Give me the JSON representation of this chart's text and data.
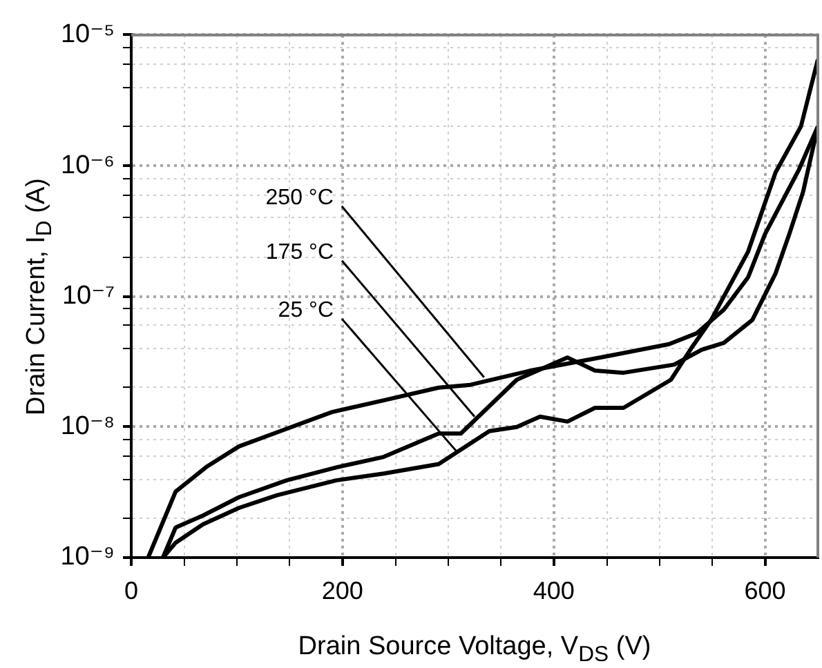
{
  "chart_data": {
    "type": "line",
    "xlabel": "Drain Source Voltage, V$_{DS}$ (V)",
    "ylabel": "Drain Current, I$_{D}$ (A)",
    "log": "y",
    "grid": true,
    "legend": false,
    "marker": "none",
    "line_style": "solid",
    "xlim": [
      0,
      650
    ],
    "xticks": [
      0,
      {
        "value": 50,
        "label": null
      },
      {
        "value": 100,
        "label": null
      },
      {
        "value": 150,
        "label": null
      },
      200,
      {
        "value": 250,
        "label": null
      },
      {
        "value": 300,
        "label": null
      },
      {
        "value": 350,
        "label": null
      },
      400,
      {
        "value": 450,
        "label": null
      },
      {
        "value": 500,
        "label": null
      },
      {
        "value": 550,
        "label": null
      },
      600
    ],
    "ylim": [
      1e-09,
      1e-05
    ],
    "yticks": [
      {
        "value": 1e-09,
        "label": "10⁻⁹"
      },
      {
        "value": 2e-09,
        "label": null
      },
      {
        "value": 4e-09,
        "label": null
      },
      {
        "value": 6e-09,
        "label": null
      },
      {
        "value": 8e-09,
        "label": null
      },
      {
        "value": 1e-08,
        "label": "10⁻⁸"
      },
      {
        "value": 2e-08,
        "label": null
      },
      {
        "value": 4e-08,
        "label": null
      },
      {
        "value": 6e-08,
        "label": null
      },
      {
        "value": 8e-08,
        "label": null
      },
      {
        "value": 1e-07,
        "label": "10⁻⁷"
      },
      {
        "value": 2e-07,
        "label": null
      },
      {
        "value": 4e-07,
        "label": null
      },
      {
        "value": 6e-07,
        "label": null
      },
      {
        "value": 8e-07,
        "label": null
      },
      {
        "value": 1e-06,
        "label": "10⁻⁶"
      },
      {
        "value": 2e-06,
        "label": null
      },
      {
        "value": 4e-06,
        "label": null
      },
      {
        "value": 6e-06,
        "label": null
      },
      {
        "value": 8e-06,
        "label": null
      },
      {
        "value": 1e-05,
        "label": "10⁻⁵"
      }
    ],
    "series": [
      {
        "color": "#000000",
        "x": [
          16,
          42,
          72,
          102,
          138,
          190,
          239,
          291,
          321,
          378,
          452,
          509,
          535,
          561,
          584,
          600,
          632,
          650
        ],
        "values": [
          1e-09,
          3.2e-09,
          5e-09,
          7.1e-09,
          9.1e-09,
          1.3e-08,
          1.6e-08,
          2e-08,
          2.1e-08,
          2.7e-08,
          3.5e-08,
          4.3e-08,
          5.2e-08,
          7.9e-08,
          1.4e-07,
          3e-07,
          9.3e-07,
          2e-06
        ]
      },
      {
        "color": "#000000",
        "x": [
          30,
          42,
          68,
          102,
          147,
          194,
          239,
          291,
          312,
          365,
          413,
          439,
          466,
          514,
          540,
          561,
          588,
          610,
          623,
          636,
          650
        ],
        "values": [
          1e-09,
          1.7e-09,
          2.1e-09,
          2.9e-09,
          3.9e-09,
          4.9e-09,
          5.9e-09,
          8.9e-09,
          8.9e-09,
          2.3e-08,
          3.4e-08,
          2.7e-08,
          2.6e-08,
          3e-08,
          3.9e-08,
          4.4e-08,
          6.6e-08,
          1.5e-07,
          3e-07,
          6.3e-07,
          2e-06
        ]
      },
      {
        "color": "#000000",
        "x": [
          30,
          42,
          68,
          102,
          138,
          194,
          239,
          291,
          339,
          365,
          387,
          413,
          439,
          466,
          511,
          531,
          549,
          584,
          610,
          634,
          650
        ],
        "values": [
          1e-09,
          1.3e-09,
          1.8e-09,
          2.4e-09,
          3e-09,
          3.9e-09,
          4.4e-09,
          5.2e-09,
          9.3e-09,
          1e-08,
          1.2e-08,
          1.1e-08,
          1.4e-08,
          1.4e-08,
          2.3e-08,
          4.1e-08,
          6.6e-08,
          2.2e-07,
          8.9e-07,
          2e-06,
          6.5e-06
        ]
      }
    ],
    "annotations": [
      {
        "text": "250 °C",
        "x": 334,
        "y": 2.4e-08
      },
      {
        "text": "175 °C",
        "x": 325,
        "y": 1.2e-08
      },
      {
        "text": "25 °C",
        "x": 308,
        "y": 6.5e-09
      }
    ]
  }
}
